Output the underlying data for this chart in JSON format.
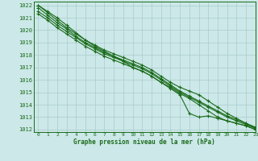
{
  "title": "Graphe pression niveau de la mer (hPa)",
  "bg_color": "#cce8e8",
  "grid_color": "#aacccc",
  "line_color": "#1a6b1a",
  "xlim": [
    -0.5,
    23
  ],
  "ylim": [
    1011.8,
    1022.3
  ],
  "yticks": [
    1012,
    1013,
    1014,
    1015,
    1016,
    1017,
    1018,
    1019,
    1020,
    1021,
    1022
  ],
  "xticks": [
    0,
    1,
    2,
    3,
    4,
    5,
    6,
    7,
    8,
    9,
    10,
    11,
    12,
    13,
    14,
    15,
    16,
    17,
    18,
    19,
    20,
    21,
    22,
    23
  ],
  "lines": [
    [
      1022.0,
      1021.4,
      1020.8,
      1020.2,
      1019.7,
      1019.2,
      1018.8,
      1018.4,
      1018.1,
      1017.8,
      1017.5,
      1017.2,
      1016.8,
      1016.3,
      1015.8,
      1015.4,
      1015.1,
      1014.8,
      1014.3,
      1013.8,
      1013.3,
      1012.9,
      1012.5,
      1012.1
    ],
    [
      1021.5,
      1021.0,
      1020.4,
      1019.9,
      1019.4,
      1018.9,
      1018.5,
      1018.1,
      1017.8,
      1017.5,
      1017.2,
      1016.9,
      1016.5,
      1016.0,
      1015.5,
      1015.0,
      1014.6,
      1014.2,
      1013.8,
      1013.4,
      1013.0,
      1012.7,
      1012.4,
      1012.1
    ],
    [
      1021.8,
      1021.2,
      1020.6,
      1020.1,
      1019.5,
      1019.0,
      1018.6,
      1018.2,
      1017.9,
      1017.6,
      1017.3,
      1017.0,
      1016.6,
      1016.1,
      1015.6,
      1015.1,
      1014.7,
      1014.3,
      1013.9,
      1013.5,
      1013.1,
      1012.8,
      1012.5,
      1012.2
    ],
    [
      1021.3,
      1020.8,
      1020.2,
      1019.7,
      1019.2,
      1018.7,
      1018.3,
      1017.9,
      1017.6,
      1017.3,
      1017.0,
      1016.7,
      1016.3,
      1015.8,
      1015.3,
      1014.8,
      1013.3,
      1013.0,
      1013.1,
      1012.9,
      1012.7,
      1012.5,
      1012.3,
      1012.0
    ],
    [
      1022.0,
      1021.5,
      1021.0,
      1020.4,
      1019.8,
      1019.2,
      1018.7,
      1018.3,
      1017.9,
      1017.5,
      1017.0,
      1016.7,
      1016.3,
      1015.8,
      1015.4,
      1014.9,
      1014.5,
      1014.0,
      1013.5,
      1013.0,
      1012.7,
      1012.5,
      1012.3,
      1012.0
    ]
  ]
}
